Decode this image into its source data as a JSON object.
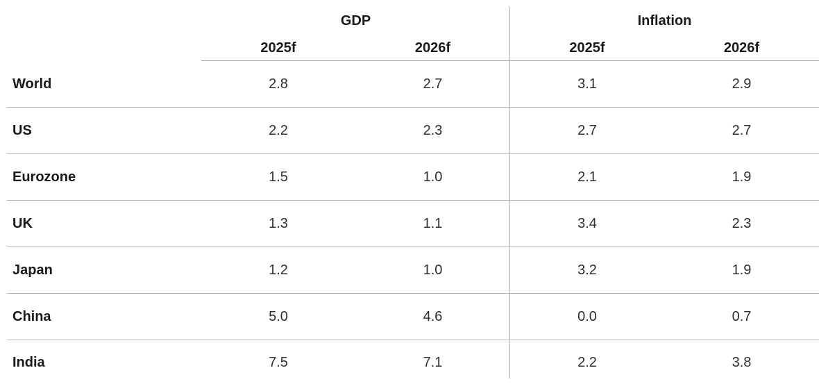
{
  "colors": {
    "background": "#ffffff",
    "header_text": "#1a1a1a",
    "value_text": "#2f2f2f",
    "header_underline": "#a0a0a0",
    "row_line": "#b5b5b5",
    "column_divider": "#b0b0b0"
  },
  "table": {
    "group_headers": [
      {
        "label": "GDP"
      },
      {
        "label": "Inflation"
      }
    ],
    "column_headers": [
      "2025f",
      "2026f",
      "2025f",
      "2026f"
    ],
    "rows": [
      {
        "region": "World",
        "values": [
          "2.8",
          "2.7",
          "3.1",
          "2.9"
        ]
      },
      {
        "region": "US",
        "values": [
          "2.2",
          "2.3",
          "2.7",
          "2.7"
        ]
      },
      {
        "region": "Eurozone",
        "values": [
          "1.5",
          "1.0",
          "2.1",
          "1.9"
        ]
      },
      {
        "region": "UK",
        "values": [
          "1.3",
          "1.1",
          "3.4",
          "2.3"
        ]
      },
      {
        "region": "Japan",
        "values": [
          "1.2",
          "1.0",
          "3.2",
          "1.9"
        ]
      },
      {
        "region": "China",
        "values": [
          "5.0",
          "4.6",
          "0.0",
          "0.7"
        ]
      },
      {
        "region": "India",
        "values": [
          "7.5",
          "7.1",
          "2.2",
          "3.8"
        ]
      }
    ]
  },
  "chart_data": {
    "type": "table",
    "column_groups": [
      "GDP",
      "Inflation"
    ],
    "columns": [
      "GDP 2025f",
      "GDP 2026f",
      "Inflation 2025f",
      "Inflation 2026f"
    ],
    "categories": [
      "World",
      "US",
      "Eurozone",
      "UK",
      "Japan",
      "China",
      "India"
    ],
    "series": [
      {
        "name": "GDP 2025f",
        "values": [
          2.8,
          2.2,
          1.5,
          1.3,
          1.2,
          5.0,
          7.5
        ]
      },
      {
        "name": "GDP 2026f",
        "values": [
          2.7,
          2.3,
          1.0,
          1.1,
          1.0,
          4.6,
          7.1
        ]
      },
      {
        "name": "Inflation 2025f",
        "values": [
          3.1,
          2.7,
          2.1,
          3.4,
          3.2,
          0.0,
          2.2
        ]
      },
      {
        "name": "Inflation 2026f",
        "values": [
          2.9,
          2.7,
          1.9,
          2.3,
          1.9,
          0.7,
          3.8
        ]
      }
    ]
  }
}
